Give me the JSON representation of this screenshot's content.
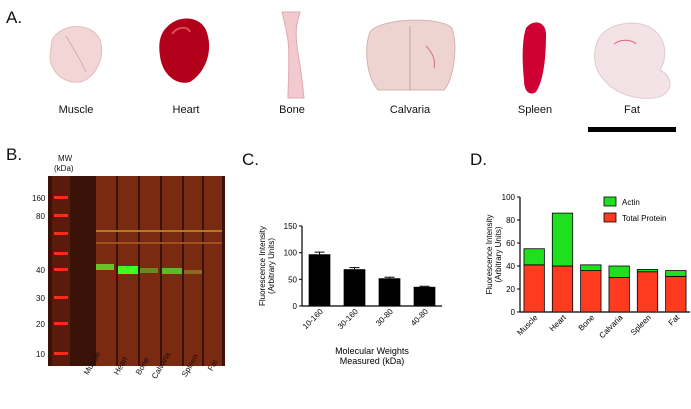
{
  "panels": {
    "a": "A.",
    "b": "B.",
    "c": "C.",
    "d": "D."
  },
  "tissues": [
    "Muscle",
    "Heart",
    "Bone",
    "Calvaria",
    "Spleen",
    "Fat"
  ],
  "blot": {
    "mw_title": "MW",
    "mw_unit": "(kDa)",
    "mw_markers": [
      "160",
      "80",
      "40",
      "30",
      "20",
      "10"
    ],
    "lane_labels": [
      "Muscle",
      "Heart",
      "Bone",
      "Calvaria",
      "Spleen",
      "Fat"
    ]
  },
  "chart_data": [
    {
      "type": "bar",
      "panel": "C",
      "categories": [
        "10-160",
        "30-160",
        "30-80",
        "40-80"
      ],
      "values": [
        97,
        69,
        52,
        36
      ],
      "errors": [
        4,
        3,
        2,
        1
      ],
      "ylabel": "Fluorescence Intensity\n(Arbitrary Units)",
      "xlabel": "Molecular Weights\nMeasured (kDa)",
      "ylim": [
        0,
        150
      ],
      "yticks": [
        0,
        50,
        100,
        150
      ],
      "bar_color": "#000000"
    },
    {
      "type": "bar",
      "panel": "D",
      "stacked": true,
      "categories": [
        "Muscle",
        "Heart",
        "Bone",
        "Calvaria",
        "Spleen",
        "Fat"
      ],
      "series": [
        {
          "name": "Total Protein",
          "color": "#ff3b1f",
          "values": [
            41,
            40,
            36,
            30,
            35,
            31
          ]
        },
        {
          "name": "Actin",
          "color": "#1fe01f",
          "values": [
            14,
            46,
            5,
            10,
            2,
            5
          ]
        }
      ],
      "ylabel": "Fluorescence Intensity\n(Arbitrary Units)",
      "ylim": [
        0,
        100
      ],
      "yticks": [
        0,
        20,
        40,
        60,
        80,
        100
      ],
      "legend": [
        "Actin",
        "Total Protein"
      ],
      "legend_position": "top-right"
    }
  ]
}
